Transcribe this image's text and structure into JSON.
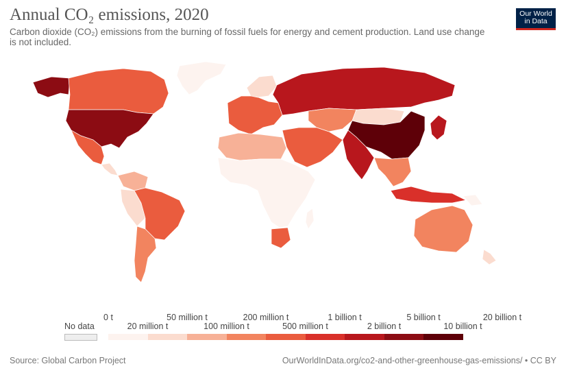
{
  "header": {
    "title": "Annual CO₂ emissions, 2020",
    "subtitle": "Carbon dioxide (CO₂) emissions from the burning of fossil fuels for energy and cement production. Land use change is not included."
  },
  "logo": {
    "line1": "Our World",
    "line2": "in Data"
  },
  "legend": {
    "no_data": "No data",
    "ticks_top": [
      "0 t",
      "50 million t",
      "200 million t",
      "1 billion t",
      "5 billion t",
      "20 billion t"
    ],
    "ticks_bottom": [
      "20 million t",
      "100 million t",
      "500 million t",
      "2 billion t",
      "10 billion t"
    ],
    "bins": [
      "#fdf3ef",
      "#fbdccf",
      "#f7b197",
      "#f2845f",
      "#ea5c3e",
      "#d9302a",
      "#b8171d",
      "#8c0c13",
      "#5e0008"
    ],
    "no_data_color": "#eeeeee"
  },
  "footer": {
    "source": "Source: Global Carbon Project",
    "url": "OurWorldInData.org/co2-and-other-greenhouse-gas-emissions/ • CC BY"
  }
}
